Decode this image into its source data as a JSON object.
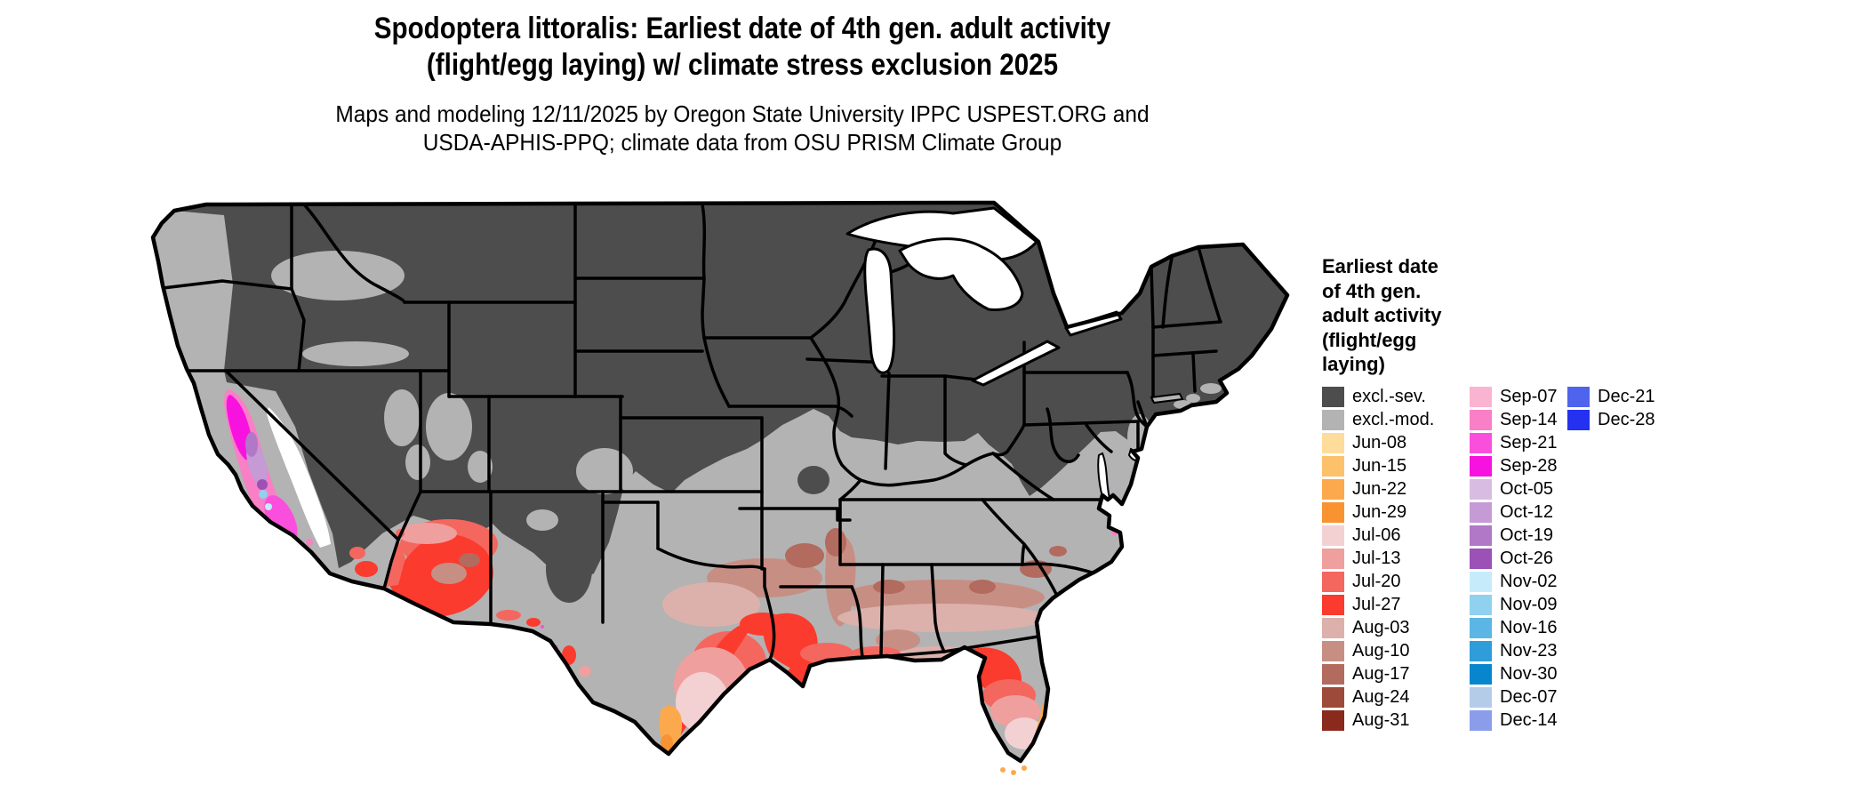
{
  "title": {
    "line1": "Spodoptera littoralis: Earliest date of 4th gen. adult activity",
    "line2": "(flight/egg laying) w/ climate stress exclusion 2025"
  },
  "subtitle": {
    "line1": "Maps and modeling 12/11/2025 by Oregon State University IPPC USPEST.ORG and",
    "line2": "USDA-APHIS-PPQ; climate data from OSU PRISM Climate Group"
  },
  "legend": {
    "title_lines": [
      "Earliest date",
      "of 4th gen.",
      "adult activity",
      "(flight/egg",
      "laying)"
    ],
    "columns": [
      [
        {
          "label": "excl.-sev.",
          "color": "#4d4d4d"
        },
        {
          "label": "excl.-mod.",
          "color": "#b3b3b3"
        },
        {
          "label": "Jun-08",
          "color": "#fedc9b"
        },
        {
          "label": "Jun-15",
          "color": "#fdc16c"
        },
        {
          "label": "Jun-22",
          "color": "#fca94e"
        },
        {
          "label": "Jun-29",
          "color": "#f99230"
        },
        {
          "label": "Jul-06",
          "color": "#f3d1d3"
        },
        {
          "label": "Jul-13",
          "color": "#f09f9f"
        },
        {
          "label": "Jul-20",
          "color": "#f4675f"
        },
        {
          "label": "Jul-27",
          "color": "#fa3b2e"
        },
        {
          "label": "Aug-03",
          "color": "#dcb1ab"
        },
        {
          "label": "Aug-10",
          "color": "#c78e84"
        },
        {
          "label": "Aug-17",
          "color": "#b26b5e"
        },
        {
          "label": "Aug-24",
          "color": "#9d4a3b"
        },
        {
          "label": "Aug-31",
          "color": "#8a2a1d"
        }
      ],
      [
        {
          "label": "Sep-07",
          "color": "#fab4d2"
        },
        {
          "label": "Sep-14",
          "color": "#f97fc6"
        },
        {
          "label": "Sep-21",
          "color": "#fa4fdc"
        },
        {
          "label": "Sep-28",
          "color": "#f712e0"
        },
        {
          "label": "Oct-05",
          "color": "#d9bce2"
        },
        {
          "label": "Oct-12",
          "color": "#c59ad5"
        },
        {
          "label": "Oct-19",
          "color": "#b078c7"
        },
        {
          "label": "Oct-26",
          "color": "#9b51b5"
        },
        {
          "label": "Nov-02",
          "color": "#c6ecfb"
        },
        {
          "label": "Nov-09",
          "color": "#8fd1ef"
        },
        {
          "label": "Nov-16",
          "color": "#5cb6e5"
        },
        {
          "label": "Nov-23",
          "color": "#2f9dd9"
        },
        {
          "label": "Nov-30",
          "color": "#0886cd"
        },
        {
          "label": "Dec-07",
          "color": "#b5cce9"
        },
        {
          "label": "Dec-14",
          "color": "#8b9dea"
        }
      ],
      [
        {
          "label": "Dec-21",
          "color": "#4f64ec"
        },
        {
          "label": "Dec-28",
          "color": "#2431f0"
        }
      ]
    ]
  },
  "map": {
    "kind": "conterminous-us-choropleth",
    "palette": {
      "sev": "#4d4d4d",
      "mod": "#b3b3b3",
      "water": "#ffffff",
      "border": "#000000",
      "jun08": "#fedc9b",
      "jun15": "#fdc16c",
      "jun22": "#fca94e",
      "jun29": "#f99230",
      "jul06": "#f3d1d3",
      "jul13": "#f09f9f",
      "jul20": "#f4675f",
      "jul27": "#fa3b2e",
      "aug03": "#dcb1ab",
      "aug10": "#c78e84",
      "aug17": "#b26b5e",
      "aug24": "#9d4a3b",
      "aug31": "#8a2a1d",
      "sep07": "#fab4d2",
      "sep14": "#f97fc6",
      "sep21": "#fa4fdc",
      "sep28": "#f712e0",
      "oct05": "#d9bce2",
      "oct12": "#c59ad5",
      "oct19": "#b078c7",
      "oct26": "#9b51b5",
      "nov02": "#c6ecfb",
      "nov09": "#8fd1ef",
      "nov16": "#5cb6e5",
      "nov23": "#2f9dd9",
      "nov30": "#0886cd",
      "dec07": "#b5cce9",
      "dec14": "#8b9dea",
      "dec21": "#4f64ec",
      "dec28": "#2431f0"
    }
  }
}
